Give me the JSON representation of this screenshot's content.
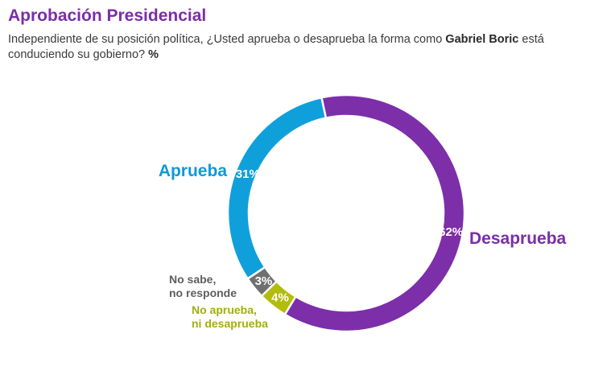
{
  "header": {
    "title": "Aprobación Presidencial",
    "subtitle_pre": "Independiente de su posición política, ¿Usted aprueba o desaprueba la forma como ",
    "subtitle_bold": "Gabriel Boric",
    "subtitle_post": " está conduciendo su gobierno?",
    "subtitle_unit": "%"
  },
  "chart_data": {
    "type": "pie",
    "title": "Aprobación Presidencial",
    "donut": true,
    "slices": [
      {
        "label": "Desaprueba",
        "label_lines": [
          "Desaprueba"
        ],
        "value": 62,
        "value_label": "62%",
        "color": "#7d2ea9",
        "label_color": "#7b2da8"
      },
      {
        "label": "No aprueba, ni desaprueba",
        "label_lines": [
          "No aprueba,",
          "ni desaprueba"
        ],
        "value": 4,
        "value_label": "4%",
        "color": "#b2bc0c",
        "label_color": "#a3ad10"
      },
      {
        "label": "No sabe, no responde",
        "label_lines": [
          "No sabe,",
          "no responde"
        ],
        "value": 3,
        "value_label": "3%",
        "color": "#707070",
        "label_color": "#5e5e5e"
      },
      {
        "label": "Aprueba",
        "label_lines": [
          "Aprueba"
        ],
        "value": 31,
        "value_label": "31%",
        "color": "#0fa0dc",
        "label_color": "#0e9ad6"
      }
    ]
  }
}
